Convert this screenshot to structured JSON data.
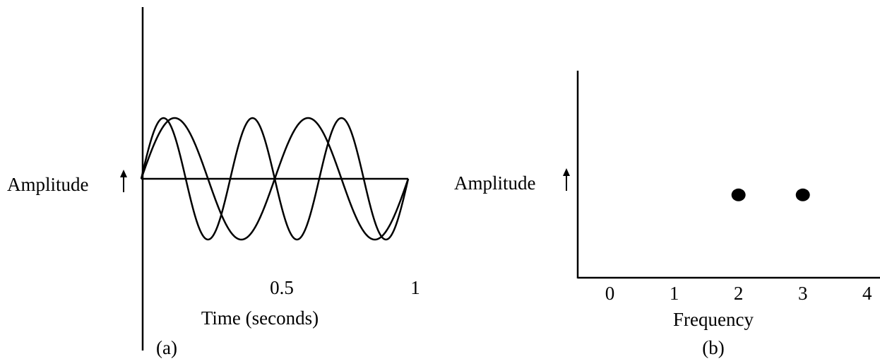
{
  "chart_data": [
    {
      "type": "line",
      "panel_label": "(a)",
      "xlabel": "Time (seconds)",
      "ylabel": "Amplitude",
      "xlim": [
        0,
        1
      ],
      "x_ticks": [
        {
          "value": 0.5,
          "label": "0.5"
        },
        {
          "value": 1,
          "label": "1"
        }
      ],
      "series": [
        {
          "frequency_hz": 3,
          "amplitude": 1,
          "x_range": [
            0,
            1
          ]
        },
        {
          "frequency_hz": 2,
          "amplitude": 1,
          "x_range": [
            0,
            1
          ]
        }
      ],
      "grid": false
    },
    {
      "type": "scatter",
      "panel_label": "(b)",
      "xlabel": "Frequency",
      "ylabel": "Amplitude",
      "xlim": [
        -0.5,
        4.2
      ],
      "x_ticks": [
        {
          "value": 0,
          "label": "0"
        },
        {
          "value": 1,
          "label": "1"
        },
        {
          "value": 2,
          "label": "2"
        },
        {
          "value": 3,
          "label": "3"
        },
        {
          "value": 4,
          "label": "4"
        }
      ],
      "points": [
        {
          "x": 2,
          "y": 1
        },
        {
          "x": 3,
          "y": 1
        }
      ],
      "grid": false
    }
  ]
}
